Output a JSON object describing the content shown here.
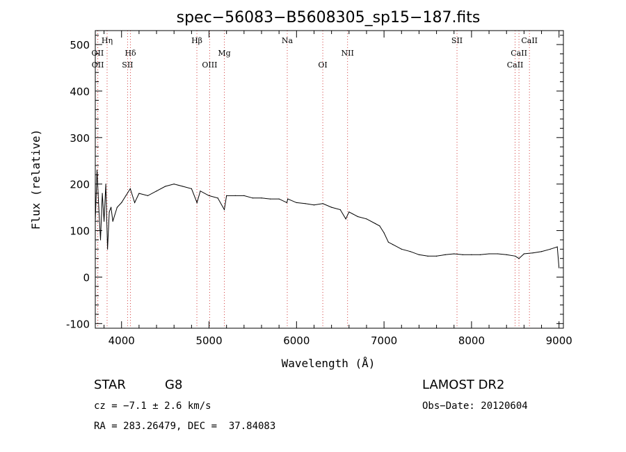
{
  "chart_data": {
    "type": "line",
    "title": "spec−56083−B5608305_sp15−187.fits",
    "xlabel": "Wavelength (Å)",
    "ylabel": "Flux (relative)",
    "xlim": [
      3700,
      9050
    ],
    "ylim": [
      -110,
      530
    ],
    "x_ticks": [
      4000,
      5000,
      6000,
      7000,
      8000,
      9000
    ],
    "y_ticks": [
      -100,
      0,
      100,
      200,
      300,
      400,
      500
    ],
    "grid": false,
    "series_color": "#000000",
    "line_marker_color": "#d23c3c",
    "series": [
      {
        "x": [
          3700,
          3720,
          3740,
          3760,
          3780,
          3800,
          3820,
          3840,
          3860,
          3880,
          3900,
          3950,
          4000,
          4050,
          4100,
          4150,
          4200,
          4300,
          4400,
          4500,
          4600,
          4700,
          4800,
          4862,
          4900,
          5000,
          5100,
          5175,
          5200,
          5300,
          5400,
          5500,
          5600,
          5700,
          5800,
          5890,
          5900,
          6000,
          6100,
          6200,
          6300,
          6400,
          6500,
          6563,
          6600,
          6700,
          6800,
          6900,
          6950,
          7000,
          7050,
          7100,
          7200,
          7300,
          7400,
          7500,
          7600,
          7700,
          7800,
          7900,
          8000,
          8100,
          8200,
          8300,
          8400,
          8500,
          8542,
          8600,
          8700,
          8800,
          8900,
          8980,
          9000
        ],
        "y": [
          120,
          230,
          150,
          80,
          180,
          120,
          200,
          60,
          140,
          150,
          120,
          150,
          160,
          175,
          190,
          160,
          180,
          175,
          185,
          195,
          200,
          195,
          190,
          160,
          185,
          175,
          170,
          145,
          175,
          175,
          175,
          170,
          170,
          168,
          168,
          160,
          168,
          160,
          158,
          155,
          158,
          150,
          145,
          125,
          140,
          130,
          125,
          115,
          110,
          95,
          75,
          70,
          60,
          55,
          48,
          45,
          45,
          48,
          50,
          48,
          48,
          48,
          50,
          50,
          48,
          45,
          40,
          50,
          52,
          55,
          60,
          65,
          20
        ]
      }
    ],
    "lines": [
      {
        "name": "OII",
        "x": 3727,
        "row": 2
      },
      {
        "name": "OII",
        "x": 3729,
        "row": 3
      },
      {
        "name": "Hη",
        "x": 3835,
        "row": 1
      },
      {
        "name": "Hδ",
        "x": 4102,
        "row": 2
      },
      {
        "name": "SII",
        "x": 4069,
        "row": 3
      },
      {
        "name": "Hβ",
        "x": 4861,
        "row": 1
      },
      {
        "name": "OIII",
        "x": 5007,
        "row": 3
      },
      {
        "name": "Mg",
        "x": 5175,
        "row": 2
      },
      {
        "name": "Na",
        "x": 5894,
        "row": 1
      },
      {
        "name": "OI",
        "x": 6300,
        "row": 3
      },
      {
        "name": "NII",
        "x": 6583,
        "row": 2
      },
      {
        "name": "SII",
        "x": 7834,
        "row": 1
      },
      {
        "name": "CaII",
        "x": 8662,
        "row": 1
      },
      {
        "name": "CaII",
        "x": 8542,
        "row": 2
      },
      {
        "name": "CaII",
        "x": 8498,
        "row": 3
      }
    ]
  },
  "info": {
    "class": "STAR",
    "subclass": "G8",
    "survey": "LAMOST DR2",
    "cz": "cz = −7.1 ± 2.6 km/s",
    "obs_date": "Obs−Date: 20120604",
    "coords": "RA = 283.26479, DEC =  37.84083"
  }
}
